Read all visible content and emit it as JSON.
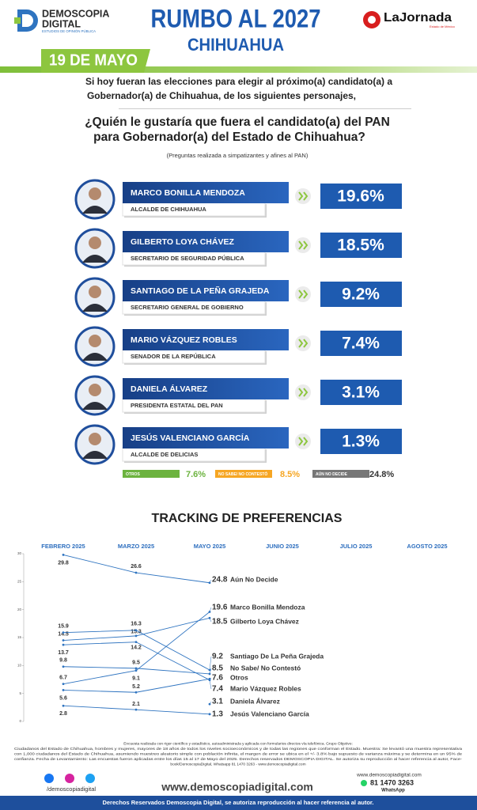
{
  "header": {
    "brand": "DEMOSCOPIA",
    "brand2": "DIGITAL",
    "brand_sub": "ESTUDIOS DE OPINIÓN PÚBLICA",
    "title": "RUMBO AL 2027",
    "subtitle": "CHIHUAHUA",
    "partner": "LaJornada",
    "partner_sub": "Estado de México",
    "date": "19 DE MAYO"
  },
  "intro": [
    "Si hoy fueran las elecciones para elegir al próximo(a) candidato(a) a",
    "Gobernador(a) de Chihuahua, de los siguientes personajes,"
  ],
  "question": [
    "¿Quién le gustaría que fuera el candidato(a) del PAN",
    "para Gobernador(a) del Estado de Chihuahua?"
  ],
  "note": "(Preguntas realizada a simpatizantes y afines al PAN)",
  "candidates": [
    {
      "name": "MARCO BONILLA MENDOZA",
      "role": "ALCALDE DE CHIHUAHUA",
      "result": "19.6%"
    },
    {
      "name": "GILBERTO LOYA CHÁVEZ",
      "role": "SECRETARIO DE SEGURIDAD PÚBLICA",
      "result": "18.5%"
    },
    {
      "name": "SANTIAGO DE LA PEÑA GRAJEDA",
      "role": "SECRETARIO GENERAL DE GOBIERNO",
      "result": "9.2%"
    },
    {
      "name": "MARIO VÁZQUEZ ROBLES",
      "role": "SENADOR DE LA REPÚBLICA",
      "result": "7.4%"
    },
    {
      "name": "DANIELA ÁLVAREZ",
      "role": "PRESIDENTA ESTATAL DEL PAN",
      "result": "3.1%"
    },
    {
      "name": "JESÚS VALENCIANO GARCÍA",
      "role": "ALCALDE DE DELICIAS",
      "result": "1.3%"
    }
  ],
  "others": [
    {
      "label": "OTROS",
      "result": "7.6%",
      "color": "#6cb33f"
    },
    {
      "label": "NO SABE/ NO CONTESTÓ",
      "result": "8.5%",
      "color": "#f6a623"
    },
    {
      "label": "AÚN NO DECIDE",
      "result": "24.8%",
      "color": "#777777"
    }
  ],
  "chart_data": {
    "type": "line",
    "title": "TRACKING DE PREFERENCIAS",
    "categories": [
      "FEBRERO 2025",
      "MARZO 2025",
      "MAYO 2025",
      "JUNIO 2025",
      "JULIO 2025",
      "AGOSTO 2025"
    ],
    "ylim": [
      0,
      30
    ],
    "yticks": [
      0,
      5,
      10,
      15,
      20,
      25,
      30
    ],
    "series": [
      {
        "name": "Aún No Decide",
        "color": "#2f74c0",
        "values": [
          29.8,
          26.6,
          24.8,
          null,
          null,
          null
        ]
      },
      {
        "name": "Marco Bonilla Mendoza",
        "color": "#2f74c0",
        "values": [
          6.7,
          9.1,
          19.6,
          null,
          null,
          null
        ]
      },
      {
        "name": "Gilberto Loya Chávez",
        "color": "#2f74c0",
        "values": [
          14.5,
          15.3,
          18.5,
          null,
          null,
          null
        ]
      },
      {
        "name": "Santiago De La Peña Grajeda",
        "color": "#2f74c0",
        "values": [
          15.9,
          16.3,
          9.2,
          null,
          null,
          null
        ]
      },
      {
        "name": "No Sabe/ No Contestó",
        "color": "#2f74c0",
        "values": [
          9.8,
          9.5,
          8.5,
          null,
          null,
          null
        ]
      },
      {
        "name": "Otros",
        "color": "#2f74c0",
        "values": [
          5.6,
          5.2,
          7.6,
          null,
          null,
          null
        ]
      },
      {
        "name": "Mario Vázquez Robles",
        "color": "#2f74c0",
        "values": [
          13.7,
          14.2,
          7.4,
          null,
          null,
          null
        ]
      },
      {
        "name": "Daniela Álvarez",
        "color": "#2f74c0",
        "values": [
          null,
          null,
          3.1,
          null,
          null,
          null
        ]
      },
      {
        "name": "Jesús Valenciano García",
        "color": "#2f74c0",
        "values": [
          2.8,
          2.1,
          1.3,
          null,
          null,
          null
        ]
      }
    ]
  },
  "footer": {
    "methodology": [
      "Encuesta realizada con rigor científico y estadístico, autoadministrada y aplicada con formularios directos vía telefónica. Grupo Objetivo:",
      "Ciudadanos del Estado de Chihuahua, hombres y mujeres, mayores de 18 años de todos los niveles socioeconómicos y de todas las regiones que conforman el Estado. Muestra: Se levantó una muestra representativa",
      "con 1,000 ciudadanos del Estado de Chihuahua, asumiendo muestreo aleatorio simple con población infinita, el margen de error se ubica en el +/- 3.8% bajo supuesto de varianza máxima y se determina en un 95% de",
      "confianza. Fecha de Levantamiento: Las encuestas fueron aplicadas entre los días 15 al 17 de Mayo del 2025. Derechos reservados DEMOSCOPIA DIGITAL. Se autoriza su reproducción al hacer referencia al autor, Face-",
      "book/DemoscopiaDigital, Whatsapp 81 1470 3263 - www.demoscopiadigital.com"
    ],
    "handle": "/demoscopiadigital",
    "website": "www.demoscopiadigital.com",
    "site_small": "www.demoscopiadigital.com",
    "phone": "81 1470 3263",
    "whatsapp": "WhatsApp",
    "rights": "Derechos Reservados Demoscopia Digital, se autoriza reproducción al hacer referencia al autor."
  }
}
